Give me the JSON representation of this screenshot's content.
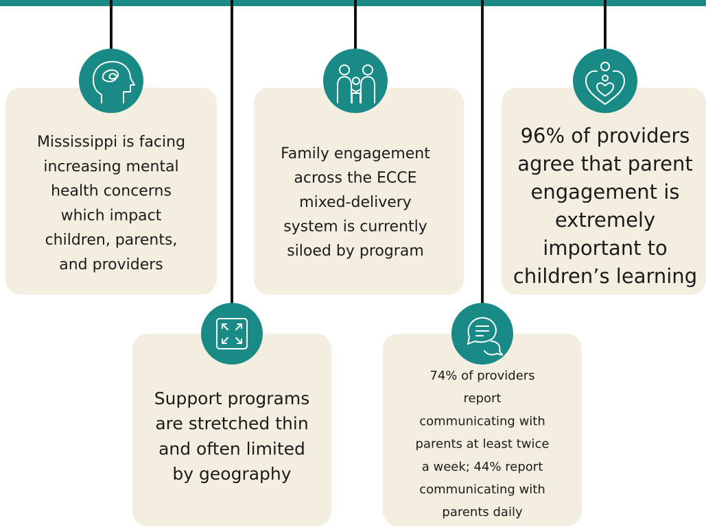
{
  "cards": [
    {
      "lines": [
        "Mississippi is facing",
        "increasing mental",
        "health concerns",
        "which impact",
        "children, parents,",
        "and providers"
      ]
    },
    {
      "lines": [
        "Support programs",
        "are stretched thin",
        "and often limited",
        "by geography"
      ]
    },
    {
      "lines": [
        "Family engagement",
        "across the ECCE",
        "mixed-delivery",
        "system is currently",
        "siloed by program"
      ]
    },
    {
      "lines": [
        "74% of providers",
        "report",
        "communicating with",
        "parents at least twice",
        "a week; 44% report",
        "communicating with",
        "parents daily"
      ]
    },
    {
      "lines": [
        "96% of providers",
        "agree that parent",
        "engagement is",
        "extremely",
        "important to",
        "children’s learning"
      ]
    }
  ]
}
